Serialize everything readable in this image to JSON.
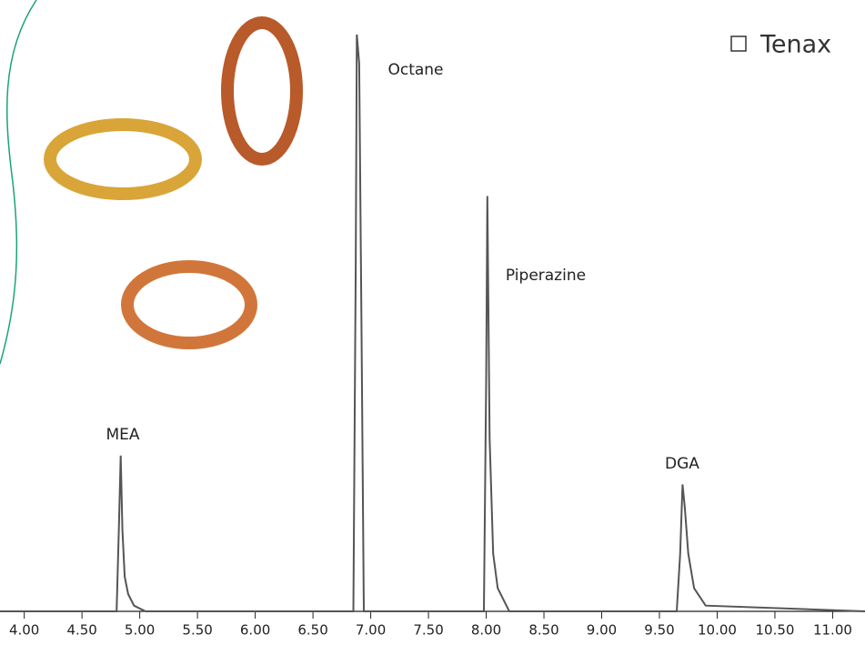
{
  "chart_data": {
    "type": "line",
    "bullet_text": "Tenax",
    "x": [
      3.79,
      4.8,
      4.82,
      4.835,
      4.85,
      4.87,
      4.9,
      4.95,
      5.05,
      6.85,
      6.87,
      6.88,
      6.9,
      6.92,
      6.94,
      7.98,
      8.0,
      8.01,
      8.03,
      8.06,
      8.1,
      8.2,
      9.65,
      9.68,
      9.7,
      9.72,
      9.75,
      9.8,
      9.9,
      11.28
    ],
    "series": [
      {
        "color": "#555555",
        "values": [
          0,
          0,
          15,
          27,
          14,
          6,
          3,
          1,
          0,
          0,
          60,
          100,
          95,
          50,
          0,
          0,
          40,
          72,
          30,
          10,
          4,
          0,
          0,
          10,
          22,
          18,
          10,
          4,
          1,
          0
        ]
      }
    ],
    "annotations": [
      "MEA",
      "Octane",
      "Piperazine",
      "DGA"
    ],
    "xlim": [
      3.79,
      11.28
    ],
    "ylim": [
      0,
      100
    ],
    "xticks": [
      {
        "value": 4,
        "label": "4.00"
      },
      {
        "value": 4.5,
        "label": "4.50"
      },
      {
        "value": 5,
        "label": "5.00"
      },
      {
        "value": 5.5,
        "label": "5.50"
      },
      {
        "value": 6,
        "label": "6.00"
      },
      {
        "value": 6.5,
        "label": "6.50"
      },
      {
        "value": 7,
        "label": "7.00"
      },
      {
        "value": 7.5,
        "label": "7.50"
      },
      {
        "value": 8,
        "label": "8.00"
      },
      {
        "value": 8.5,
        "label": "8.50"
      },
      {
        "value": 9,
        "label": "9.00"
      },
      {
        "value": 9.5,
        "label": "9.50"
      },
      {
        "value": 10,
        "label": "10.00"
      },
      {
        "value": 10.5,
        "label": "10.50"
      },
      {
        "value": 11,
        "label": "11.00"
      }
    ]
  }
}
